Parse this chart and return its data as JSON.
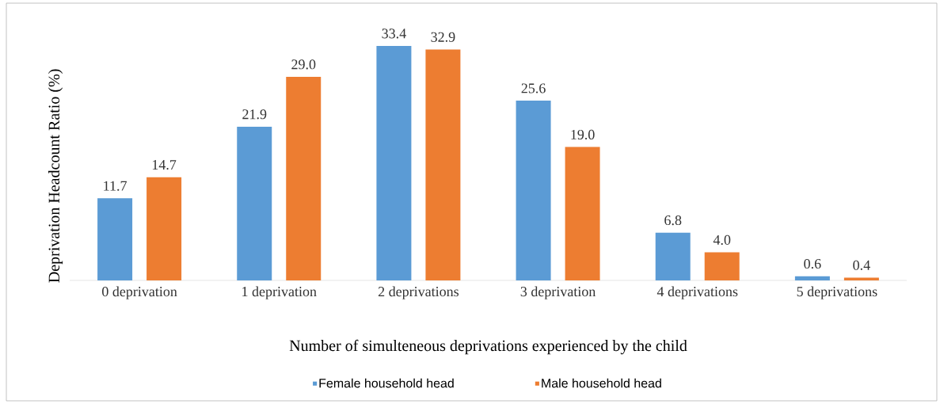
{
  "chart_data": {
    "type": "bar",
    "categories": [
      "0 deprivation",
      "1 deprivation",
      "2 deprivations",
      "3 deprivation",
      "4 deprivations",
      "5 deprivations"
    ],
    "series": [
      {
        "name": "Female household head",
        "color": "#5b9bd5",
        "values": [
          11.7,
          21.9,
          33.4,
          25.6,
          6.8,
          0.6
        ],
        "value_labels": [
          "11.7",
          "21.9",
          "33.4",
          "25.6",
          "6.8",
          "0.6"
        ]
      },
      {
        "name": "Male household head",
        "color": "#ed7d31",
        "values": [
          14.7,
          29.0,
          32.9,
          19.0,
          4.0,
          0.4
        ],
        "value_labels": [
          "14.7",
          "29.0",
          "32.9",
          "19.0",
          "4.0",
          "0.4"
        ]
      }
    ],
    "xlabel": "Number of simulteneous deprivations experienced by the child",
    "ylabel": "Deprivation Headcount Ratio (%)",
    "legend": "bottom"
  }
}
